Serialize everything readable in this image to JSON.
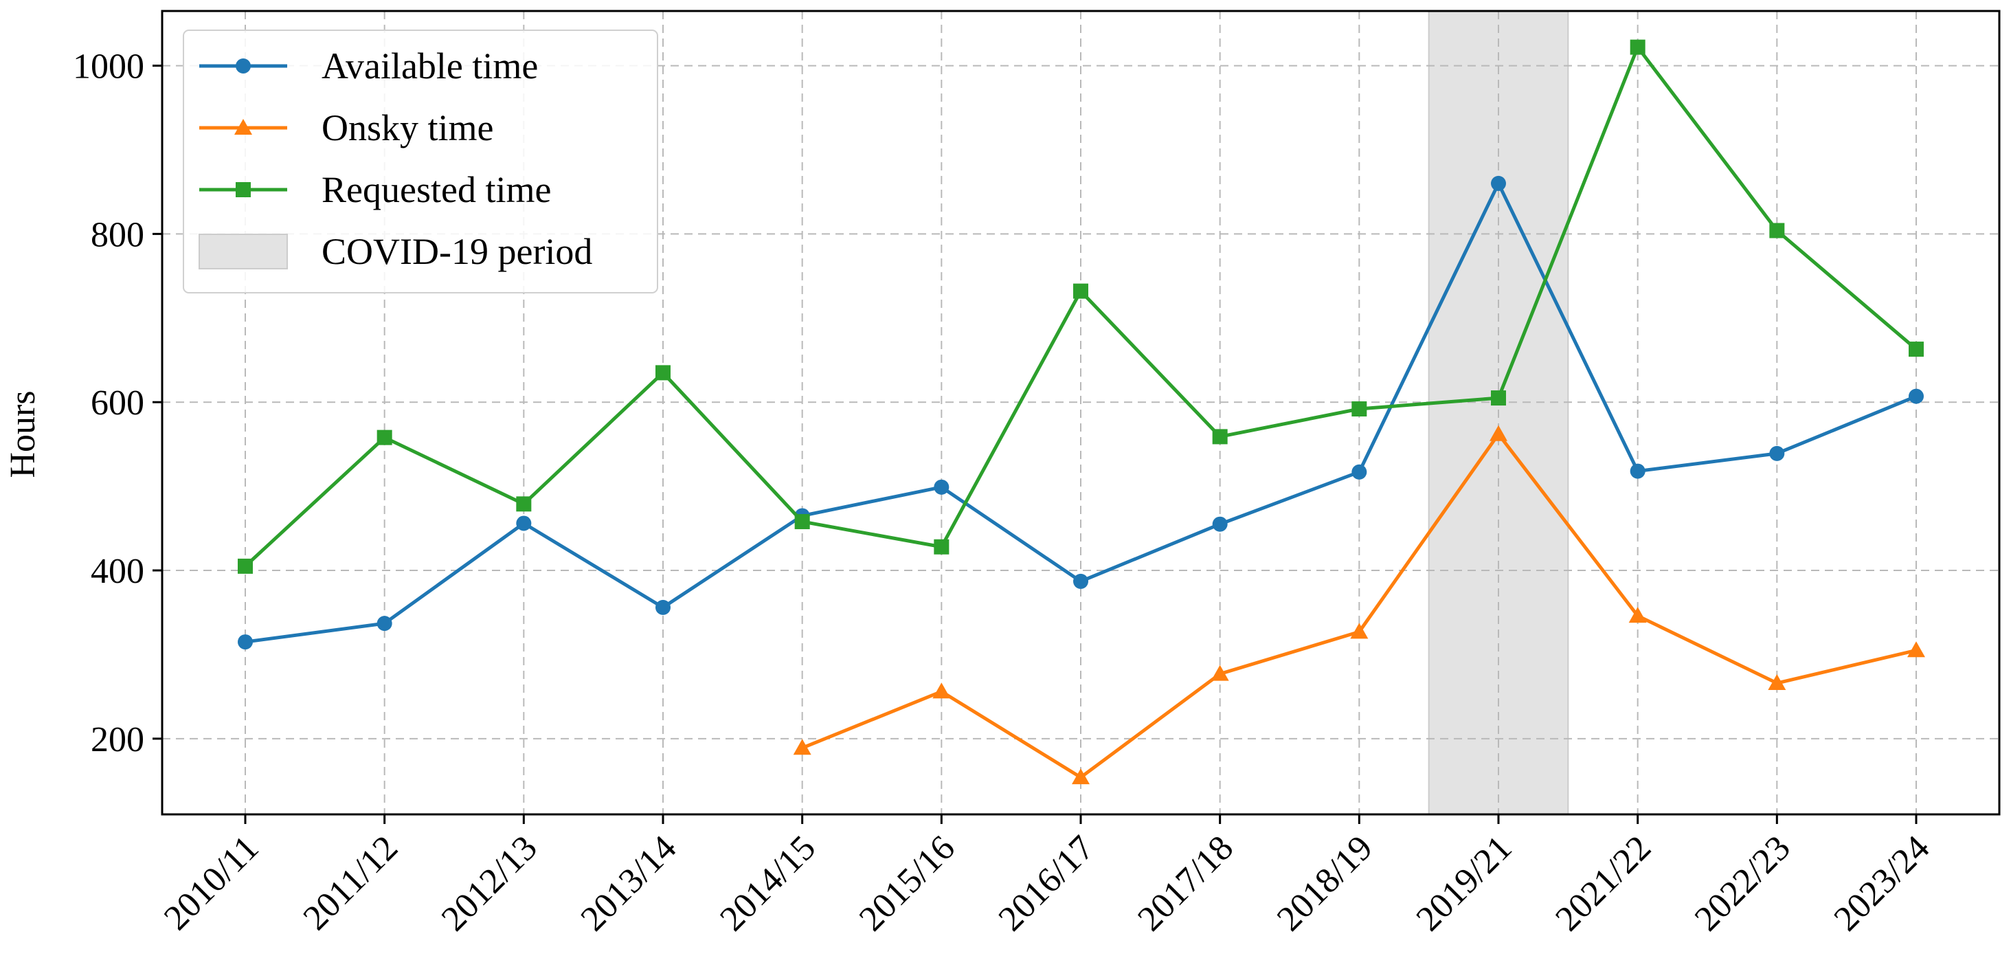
{
  "chart_data": {
    "type": "line",
    "title": "",
    "xlabel": "",
    "ylabel": "Hours",
    "categories": [
      "2010/11",
      "2011/12",
      "2012/13",
      "2013/14",
      "2014/15",
      "2015/16",
      "2016/17",
      "2017/18",
      "2018/19",
      "2019/21",
      "2021/22",
      "2022/23",
      "2023/24"
    ],
    "ylim": [
      110,
      1065
    ],
    "yticks": [
      200,
      400,
      600,
      800,
      1000
    ],
    "grid": true,
    "legend_position": "top-left",
    "shaded_region": {
      "label": "COVID-19 period",
      "from_category": "2018/19",
      "to_category": "2021/22",
      "color": "#e3e3e3"
    },
    "series": [
      {
        "name": "Available time",
        "color": "#1f77b4",
        "marker": "circle",
        "values": [
          315,
          337,
          456,
          356,
          465,
          499,
          387,
          455,
          517,
          860,
          518,
          539,
          607
        ]
      },
      {
        "name": "Onsky time",
        "color": "#ff7f0e",
        "marker": "triangle",
        "values": [
          null,
          null,
          null,
          null,
          189,
          256,
          154,
          277,
          327,
          562,
          346,
          266,
          305
        ]
      },
      {
        "name": "Requested time",
        "color": "#2ca02c",
        "marker": "square",
        "values": [
          405,
          558,
          479,
          635,
          458,
          428,
          732,
          559,
          592,
          605,
          1022,
          804,
          663
        ]
      }
    ]
  }
}
